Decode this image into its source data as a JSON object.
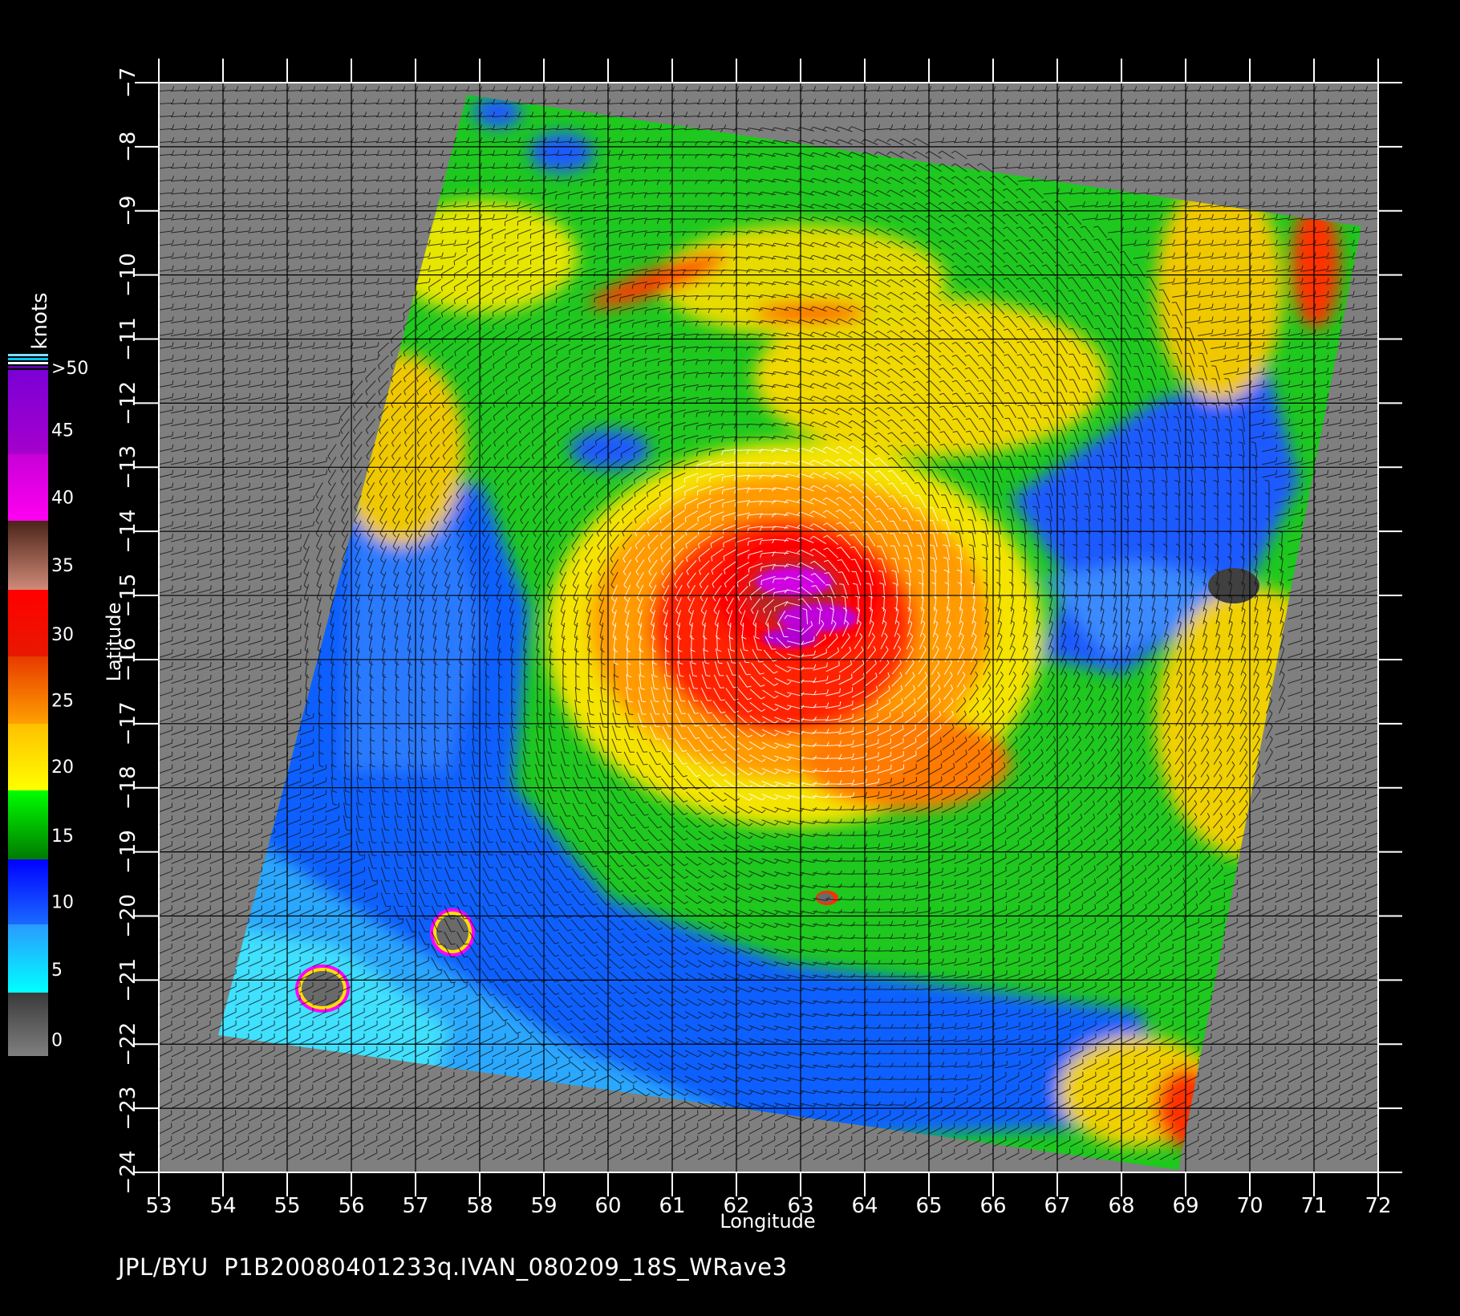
{
  "map": {
    "lon_ticks": [
      53,
      54,
      55,
      56,
      57,
      58,
      59,
      60,
      61,
      62,
      63,
      64,
      65,
      66,
      67,
      68,
      69,
      70,
      71,
      72
    ],
    "lat_ticks": [
      -7,
      -8,
      -9,
      -10,
      -11,
      -12,
      -13,
      -14,
      -15,
      -16,
      -17,
      -18,
      -19,
      -20,
      -21,
      -22,
      -23,
      -24
    ],
    "xlabel": "Longitude",
    "ylabel": "Latitude",
    "lon_range": [
      53,
      72
    ],
    "lat_range": [
      -7,
      -24
    ],
    "cyclone_center": {
      "lon": 62.9,
      "lat": -15.4
    },
    "islands": [
      {
        "lon": 55.5,
        "lat": -21.1
      },
      {
        "lon": 57.6,
        "lat": -20.3
      },
      {
        "lon": 63.4,
        "lat": -19.7
      }
    ],
    "background_color": "#7f7f7f",
    "grid": true
  },
  "legend": {
    "title": "knots",
    "labels": [
      ">50",
      "45",
      "40",
      "35",
      "30",
      "25",
      "20",
      "15",
      "10",
      "5",
      "0"
    ],
    "bands": [
      {
        "range": "45-50",
        "from": "#7a00d6",
        "to": "#a600cc"
      },
      {
        "range": "40-45",
        "from": "#c800d8",
        "to": "#ff00f0"
      },
      {
        "range": "35-40",
        "from": "#4a2418",
        "to": "#d08a78"
      },
      {
        "range": "30-35",
        "from": "#ff0000",
        "to": "#e81800"
      },
      {
        "range": "25-30",
        "from": "#e83a00",
        "to": "#ffa000"
      },
      {
        "range": "20-25",
        "from": "#ffc000",
        "to": "#ffff00"
      },
      {
        "range": "15-20",
        "from": "#00ff00",
        "to": "#007a00"
      },
      {
        "range": "10-15",
        "from": "#0000ff",
        "to": "#1a6aff"
      },
      {
        "range": "5-10",
        "from": "#2a9aff",
        "to": "#00ffff"
      },
      {
        "range": "0-5",
        "from": "#3a3a3a",
        "to": "#7f7f7f"
      }
    ]
  },
  "footer": "JPL/BYU  P1B20080401233q.IVAN_080209_18S_WRave3"
}
